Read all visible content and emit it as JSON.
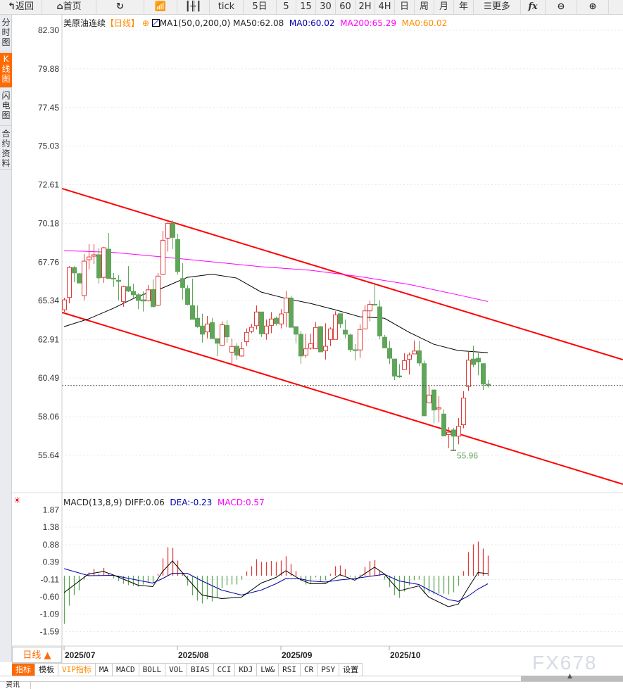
{
  "toolbar": {
    "items": [
      {
        "label": "返回",
        "icon": "back-arrow-icon"
      },
      {
        "label": "首页",
        "icon": "home-icon"
      },
      {
        "label": "",
        "icon": "refresh-icon"
      },
      {
        "label": "",
        "icon": "line-chart-icon"
      },
      {
        "label": "",
        "icon": "candlestick-icon"
      },
      {
        "label": "tick"
      },
      {
        "label": "5日"
      },
      {
        "label": "5"
      },
      {
        "label": "15"
      },
      {
        "label": "30"
      },
      {
        "label": "60"
      },
      {
        "label": "2H"
      },
      {
        "label": "4H"
      },
      {
        "label": "日"
      },
      {
        "label": "周"
      },
      {
        "label": "月"
      },
      {
        "label": "年"
      },
      {
        "label": "更多",
        "icon": "menu-icon"
      },
      {
        "label": "fx",
        "icon": "formula-icon"
      },
      {
        "label": "",
        "icon": "zoom-out-icon"
      },
      {
        "label": "",
        "icon": "zoom-in-icon"
      }
    ]
  },
  "sidebar": {
    "items": [
      {
        "label": "分时图"
      },
      {
        "label": "K线图",
        "active": true
      },
      {
        "label": "闪电图"
      },
      {
        "label": "合约资料"
      }
    ]
  },
  "legend": {
    "symbol": "美原油连续",
    "period": "【日线】",
    "indicator": "MA1(50,0,200,0)",
    "ma50": "MA50:62.08",
    "ma0a": "MA0:60.02",
    "ma200": "MA200:65.29",
    "ma0b": "MA0:60.02"
  },
  "macd_legend": {
    "name": "MACD(13,8,9)",
    "diff": "DIFF:0.06",
    "dea": "DEA:-0.23",
    "macd": "MACD:0.57"
  },
  "period_selector": {
    "label": "日线 ▲"
  },
  "bottom_tabs": [
    "指标",
    "模板",
    "VIP指标",
    "MA",
    "MACD",
    "BOLL",
    "VOL",
    "BIAS",
    "CCI",
    "KDJ",
    "LW&",
    "RSI",
    "CR",
    "PSY",
    "设置"
  ],
  "news_tab": "资讯",
  "watermark": "FX678",
  "colors": {
    "up": "#e03a3a",
    "down": "#5fa55a",
    "ma50": "#000000",
    "ma200": "#ff00ff",
    "channel": "#ff0000",
    "diff": "#000000",
    "dea": "#0000aa",
    "accent": "#ff6a00",
    "last_price_line": "#555555"
  },
  "chart_data": {
    "type": "candlestick",
    "price_axis": {
      "ticks": [
        "82.30",
        "79.88",
        "77.45",
        "75.03",
        "72.61",
        "70.18",
        "67.76",
        "65.34",
        "62.91",
        "60.49",
        "58.06",
        "55.64"
      ],
      "range": [
        55.64,
        82.3
      ]
    },
    "x_labels": [
      {
        "label": "2025/07",
        "index": 0
      },
      {
        "label": "2025/08",
        "index": 23
      },
      {
        "label": "2025/09",
        "index": 44
      },
      {
        "label": "2025/10",
        "index": 66
      }
    ],
    "low_annotation": {
      "index": 79,
      "value": "55.96"
    },
    "last_price": 60.02,
    "ohlc": [
      [
        64.77,
        65.52,
        64.64,
        65.39
      ],
      [
        65.54,
        67.51,
        65.18,
        67.42
      ],
      [
        67.42,
        67.51,
        66.5,
        67.08
      ],
      [
        67.03,
        67.07,
        66.42,
        66.45
      ],
      [
        65.66,
        68.26,
        65.36,
        67.82
      ],
      [
        67.91,
        68.88,
        67.3,
        68.08
      ],
      [
        68.13,
        68.88,
        67.64,
        68.22
      ],
      [
        68.22,
        68.63,
        66.41,
        66.77
      ],
      [
        66.8,
        68.72,
        66.46,
        68.66
      ],
      [
        68.57,
        69.59,
        66.73,
        66.73
      ],
      [
        66.75,
        67.07,
        66.2,
        66.7
      ],
      [
        66.62,
        66.95,
        65.36,
        66.55
      ],
      [
        65.29,
        66.28,
        64.96,
        66.22
      ],
      [
        66.22,
        67.51,
        65.88,
        65.94
      ],
      [
        65.92,
        66.41,
        65.52,
        65.71
      ],
      [
        65.71,
        65.8,
        64.81,
        65.36
      ],
      [
        65.39,
        65.92,
        64.66,
        65.32
      ],
      [
        65.33,
        66.32,
        65.29,
        66.02
      ],
      [
        66.04,
        66.67,
        64.96,
        64.96
      ],
      [
        65.05,
        67.07,
        65.01,
        66.88
      ],
      [
        66.98,
        69.72,
        66.98,
        69.13
      ],
      [
        69.26,
        70.26,
        68.42,
        70.19
      ],
      [
        70.19,
        70.38,
        68.57,
        69.31
      ],
      [
        69.18,
        69.54,
        66.98,
        67.17
      ],
      [
        66.73,
        67.69,
        65.41,
        66.17
      ],
      [
        66.1,
        66.31,
        65.04,
        65.1
      ],
      [
        65.03,
        66.72,
        64.17,
        64.17
      ],
      [
        64.24,
        65.04,
        63.64,
        63.71
      ],
      [
        63.75,
        64.52,
        62.71,
        63.24
      ],
      [
        63.38,
        64.38,
        62.98,
        63.88
      ],
      [
        63.97,
        64.26,
        62.96,
        62.96
      ],
      [
        62.96,
        62.96,
        61.87,
        62.67
      ],
      [
        62.54,
        64.04,
        62.54,
        63.83
      ],
      [
        63.79,
        64.11,
        62.71,
        63.07
      ],
      [
        62.11,
        62.96,
        61.32,
        62.47
      ],
      [
        62.48,
        62.68,
        61.63,
        61.92
      ],
      [
        61.87,
        62.75,
        61.83,
        62.32
      ],
      [
        62.77,
        63.6,
        62.49,
        63.35
      ],
      [
        63.42,
        63.89,
        63.3,
        63.67
      ],
      [
        63.77,
        65.04,
        63.53,
        64.63
      ],
      [
        64.63,
        64.63,
        63.07,
        63.26
      ],
      [
        63.26,
        64.16,
        62.89,
        63.75
      ],
      [
        63.79,
        64.63,
        63.3,
        64.19
      ],
      [
        64.24,
        64.34,
        63.77,
        63.91
      ],
      [
        63.88,
        64.81,
        63.6,
        64.51
      ],
      [
        64.58,
        65.95,
        63.67,
        65.51
      ],
      [
        65.51,
        65.66,
        63.67,
        63.67
      ],
      [
        63.71,
        63.71,
        62.67,
        63.24
      ],
      [
        63.23,
        63.45,
        61.39,
        61.87
      ],
      [
        61.92,
        63.27,
        61.76,
        62.32
      ],
      [
        62.36,
        63.27,
        62.27,
        62.64
      ],
      [
        62.33,
        64.01,
        62.33,
        63.66
      ],
      [
        63.71,
        63.75,
        62.13,
        62.13
      ],
      [
        62.2,
        63.92,
        61.65,
        62.48
      ],
      [
        62.91,
        63.67,
        62.49,
        63.57
      ],
      [
        62.91,
        64.67,
        62.91,
        64.45
      ],
      [
        64.52,
        64.52,
        63.64,
        63.89
      ],
      [
        63.49,
        64.16,
        62.98,
        63.24
      ],
      [
        63.19,
        63.27,
        62.13,
        62.27
      ],
      [
        62.26,
        62.62,
        61.58,
        62.21
      ],
      [
        62.25,
        63.85,
        61.76,
        63.53
      ],
      [
        63.57,
        65.07,
        63.57,
        64.7
      ],
      [
        64.7,
        65.32,
        64.04,
        65.11
      ],
      [
        65.11,
        66.36,
        65.07,
        65.07
      ],
      [
        64.95,
        65.36,
        62.93,
        63.13
      ],
      [
        63.05,
        63.19,
        62.38,
        62.38
      ],
      [
        62.35,
        62.82,
        61.36,
        61.73
      ],
      [
        61.68,
        61.68,
        60.36,
        60.61
      ],
      [
        60.62,
        61.36,
        60.5,
        60.56
      ],
      [
        61.02,
        62.05,
        61.02,
        61.58
      ],
      [
        61.67,
        62.09,
        60.7,
        61.94
      ],
      [
        62.0,
        62.84,
        62.0,
        62.18
      ],
      [
        62.2,
        62.82,
        61.24,
        61.43
      ],
      [
        61.39,
        61.58,
        58.12,
        58.12
      ],
      [
        58.93,
        60.07,
        58.93,
        59.42
      ],
      [
        59.74,
        59.74,
        57.64,
        58.48
      ],
      [
        58.55,
        59.34,
        57.71,
        58.62
      ],
      [
        58.23,
        58.52,
        56.86,
        56.86
      ],
      [
        56.94,
        57.41,
        56.09,
        57.09
      ],
      [
        57.23,
        57.35,
        55.96,
        56.84
      ],
      [
        56.84,
        57.98,
        56.33,
        57.46
      ],
      [
        57.56,
        59.67,
        57.34,
        59.23
      ],
      [
        59.96,
        62.13,
        59.67,
        61.61
      ],
      [
        61.68,
        62.52,
        61.16,
        61.34
      ],
      [
        61.73,
        62.13,
        60.66,
        61.5
      ],
      [
        61.39,
        61.41,
        59.74,
        60.11
      ],
      [
        60.1,
        60.36,
        59.89,
        60.02
      ]
    ],
    "ma50": [
      [
        0,
        63.71
      ],
      [
        5,
        64.2
      ],
      [
        10,
        64.86
      ],
      [
        15,
        65.61
      ],
      [
        20,
        66.14
      ],
      [
        25,
        66.8
      ],
      [
        30,
        67.0
      ],
      [
        35,
        66.76
      ],
      [
        40,
        65.88
      ],
      [
        45,
        65.48
      ],
      [
        50,
        65.17
      ],
      [
        55,
        64.77
      ],
      [
        60,
        64.33
      ],
      [
        65,
        64.24
      ],
      [
        70,
        63.36
      ],
      [
        75,
        62.61
      ],
      [
        80,
        62.21
      ],
      [
        86,
        62.08
      ]
    ],
    "ma200": [
      [
        0,
        68.48
      ],
      [
        10,
        68.37
      ],
      [
        20,
        68.08
      ],
      [
        30,
        67.78
      ],
      [
        40,
        67.47
      ],
      [
        50,
        67.25
      ],
      [
        60,
        66.85
      ],
      [
        70,
        66.36
      ],
      [
        80,
        65.7
      ],
      [
        86,
        65.29
      ]
    ],
    "channel_upper": [
      [
        -0.4,
        72.37
      ],
      [
        113.4,
        61.64
      ]
    ],
    "channel_lower": [
      [
        -0.4,
        64.6
      ],
      [
        113.4,
        53.83
      ]
    ],
    "macd_axis": {
      "ticks": [
        "1.87",
        "1.38",
        "0.88",
        "0.39",
        "-0.11",
        "-0.60",
        "-1.09",
        "-1.59"
      ]
    },
    "macd_hist": [
      -1.37,
      -0.85,
      -0.55,
      -0.41,
      -0.11,
      0.09,
      0.19,
      0.05,
      0.22,
      0.05,
      -0.08,
      -0.15,
      -0.23,
      -0.27,
      -0.29,
      -0.31,
      -0.25,
      -0.18,
      -0.21,
      0.05,
      0.49,
      0.81,
      0.79,
      0.43,
      0.09,
      -0.28,
      -0.56,
      -0.71,
      -0.79,
      -0.67,
      -0.73,
      -0.61,
      -0.35,
      -0.27,
      -0.25,
      -0.25,
      -0.11,
      0.12,
      0.27,
      0.47,
      0.39,
      0.39,
      0.42,
      0.39,
      0.43,
      0.55,
      0.33,
      0.13,
      -0.15,
      -0.25,
      -0.21,
      -0.05,
      -0.15,
      -0.13,
      0.05,
      0.27,
      0.29,
      0.19,
      -0.03,
      -0.09,
      0.03,
      0.25,
      0.41,
      0.44,
      0.15,
      -0.11,
      -0.33,
      -0.55,
      -0.63,
      -0.45,
      -0.27,
      -0.13,
      -0.11,
      -0.51,
      -0.48,
      -0.53,
      -0.51,
      -0.51,
      -0.53,
      -0.47,
      -0.29,
      0.13,
      0.67,
      0.89,
      0.97,
      0.77,
      0.57
    ],
    "diff": [
      [
        0,
        -0.48
      ],
      [
        5,
        0.05
      ],
      [
        8,
        0.12
      ],
      [
        10,
        0.02
      ],
      [
        15,
        -0.27
      ],
      [
        18,
        -0.31
      ],
      [
        20,
        0.12
      ],
      [
        22,
        0.42
      ],
      [
        25,
        -0.08
      ],
      [
        28,
        -0.55
      ],
      [
        32,
        -0.65
      ],
      [
        36,
        -0.61
      ],
      [
        40,
        -0.21
      ],
      [
        43,
        -0.05
      ],
      [
        45,
        0.14
      ],
      [
        48,
        -0.11
      ],
      [
        50,
        -0.23
      ],
      [
        53,
        -0.23
      ],
      [
        56,
        0.03
      ],
      [
        59,
        -0.13
      ],
      [
        63,
        0.24
      ],
      [
        65,
        0.05
      ],
      [
        68,
        -0.43
      ],
      [
        72,
        -0.29
      ],
      [
        74,
        -0.61
      ],
      [
        78,
        -0.88
      ],
      [
        80,
        -0.81
      ],
      [
        82,
        -0.35
      ],
      [
        84,
        0.09
      ],
      [
        86,
        0.06
      ]
    ],
    "dea": [
      [
        0,
        0.2
      ],
      [
        5,
        0.0
      ],
      [
        10,
        0.01
      ],
      [
        15,
        -0.13
      ],
      [
        18,
        -0.21
      ],
      [
        20,
        -0.08
      ],
      [
        22,
        0.07
      ],
      [
        25,
        0.07
      ],
      [
        28,
        -0.15
      ],
      [
        32,
        -0.41
      ],
      [
        36,
        -0.55
      ],
      [
        40,
        -0.41
      ],
      [
        43,
        -0.23
      ],
      [
        45,
        -0.08
      ],
      [
        48,
        -0.09
      ],
      [
        50,
        -0.15
      ],
      [
        53,
        -0.18
      ],
      [
        56,
        -0.12
      ],
      [
        59,
        -0.08
      ],
      [
        63,
        0.0
      ],
      [
        65,
        0.04
      ],
      [
        68,
        -0.15
      ],
      [
        72,
        -0.25
      ],
      [
        74,
        -0.4
      ],
      [
        78,
        -0.68
      ],
      [
        80,
        -0.73
      ],
      [
        82,
        -0.58
      ],
      [
        84,
        -0.38
      ],
      [
        86,
        -0.23
      ]
    ]
  }
}
